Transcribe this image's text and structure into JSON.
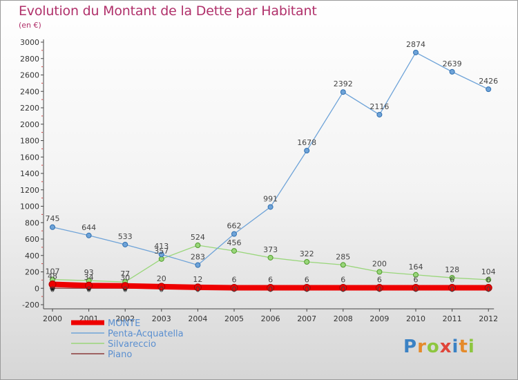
{
  "title": "Evolution du Montant de la Dette par Habitant",
  "unit": "(en €)",
  "brand": {
    "letters": [
      {
        "ch": "P",
        "color": "#3b82c4"
      },
      {
        "ch": "r",
        "color": "#e58a2a"
      },
      {
        "ch": "o",
        "color": "#8dc63f"
      },
      {
        "ch": "x",
        "color": "#e0453a"
      },
      {
        "ch": "i",
        "color": "#3b82c4"
      },
      {
        "ch": "t",
        "color": "#e58a2a"
      },
      {
        "ch": "i",
        "color": "#8dc63f"
      }
    ]
  },
  "chart_data": {
    "type": "line",
    "title": "Evolution du Montant de la Dette par Habitant",
    "ylabel": "(en €)",
    "xlabel": "",
    "x": [
      "2000",
      "2001",
      "2002",
      "2003",
      "2004",
      "2005",
      "2006",
      "2007",
      "2008",
      "2009",
      "2010",
      "2011",
      "2012"
    ],
    "ylim": [
      -200,
      3000
    ],
    "ytick_step": 200,
    "grid": false,
    "legend_position": "bottom-left",
    "series": [
      {
        "name": "MONTE",
        "color": "#ee0000",
        "values": [
          48,
          34,
          30,
          20,
          12,
          6,
          6,
          6,
          6,
          6,
          6,
          6,
          6
        ],
        "labels": [
          "48",
          "34",
          "30",
          "20",
          "12",
          "6",
          "6",
          "6",
          "6",
          "6",
          "6",
          "6",
          "6"
        ]
      },
      {
        "name": "Penta-Acquatella",
        "color": "#6ea3d8",
        "values": [
          745,
          644,
          533,
          413,
          283,
          662,
          991,
          1678,
          2392,
          2116,
          2874,
          2639,
          2426
        ],
        "labels": [
          "745",
          "644",
          "533",
          "413",
          "283",
          "662",
          "991",
          "1678",
          "2392",
          "2116",
          "2874",
          "2639",
          "2426"
        ]
      },
      {
        "name": "Silvareccio",
        "color": "#99d67a",
        "values": [
          107,
          93,
          77,
          357,
          524,
          456,
          373,
          322,
          285,
          200,
          164,
          128,
          104
        ],
        "labels": [
          "107",
          "93",
          "77",
          "357",
          "524",
          "456",
          "373",
          "322",
          "285",
          "200",
          "164",
          "128",
          "104"
        ]
      },
      {
        "name": "Piano",
        "color": "#8a3b3b",
        "values": [
          0,
          0,
          0,
          0,
          0,
          0,
          0,
          0,
          0,
          0,
          0,
          0,
          0
        ],
        "labels": [
          "0",
          "0",
          "0",
          "0",
          "0",
          "0",
          "0",
          "0",
          "0",
          "0",
          "0",
          "0",
          "0"
        ]
      }
    ]
  }
}
